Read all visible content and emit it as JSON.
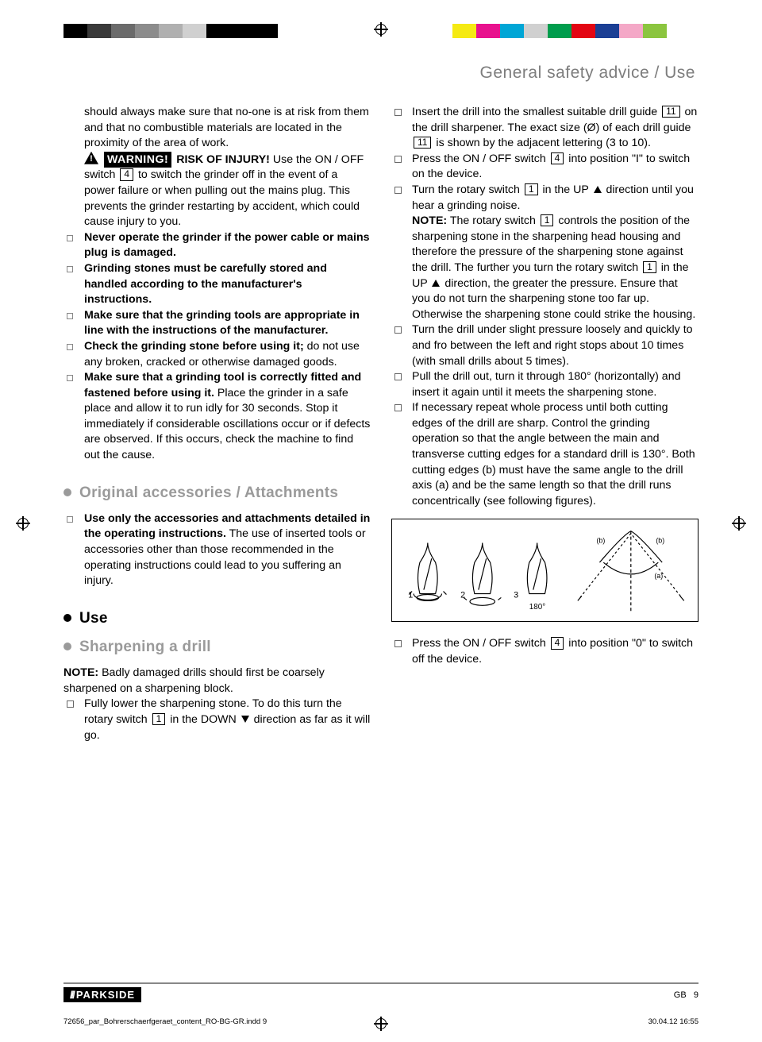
{
  "reg_colors_left": [
    "#000000",
    "#3a3a3a",
    "#6b6b6b",
    "#8c8c8c",
    "#b0b0b0",
    "#d0d0d0",
    "#000000",
    "#000000",
    "#000000",
    "#ffffff"
  ],
  "reg_colors_right": [
    "#f5ea13",
    "#e8128e",
    "#00a6d6",
    "#d0d0d0",
    "#009d4d",
    "#e30613",
    "#1b3f94",
    "#f4a8c7",
    "#8bc53f",
    "#ffffff"
  ],
  "header": "General safety advice / Use",
  "col1": {
    "p1_pre": "should always make sure that no-one is at risk from them and that no combustible materials are located in the proximity of the area of work.",
    "warn_label": "WARNING!",
    "warn_title": " RISK OF INJURY!",
    "warn_text1": " Use the ON / OFF switch ",
    "warn_box1": "4",
    "warn_text2": " to switch the grinder off in the event of a power failure or when pulling out the mains plug. This prevents the grinder restarting by accident, which could cause injury to you.",
    "li1": "Never operate the grinder if the power cable or mains plug is damaged.",
    "li2": "Grinding stones must be carefully stored and handled according to the manufacturer's instructions.",
    "li3": "Make sure that the grinding tools are appropriate in line with the instructions of the manufacturer.",
    "li4a": "Check the grinding stone before using it;",
    "li4b": " do not use any broken, cracked or otherwise damaged goods.",
    "li5a": "Make sure that a grinding tool is correctly fitted and fastened before using it.",
    "li5b": " Place the grinder in a safe place and allow it to run idly for 30 seconds. Stop it immediately if considerable oscillations occur or if defects are observed. If this occurs, check the machine to find out the cause.",
    "sec1_title": "Original accessories / Attachments",
    "acc_li_a": "Use only the accessories and attachments detailed in the operating instructions.",
    "acc_li_b": " The use of inserted tools or accessories other than those recommended in the operating instructions could lead to you suffering an injury.",
    "sec_use": "Use",
    "sec_sharpen": "Sharpening a drill",
    "note_label": "NOTE:",
    "note_text": " Badly damaged drills should first be coarsely sharpened on a sharpening block.",
    "sh_li1a": "Fully lower the sharpening stone. To do this turn the rotary switch ",
    "sh_box1": "1",
    "sh_li1b": " in the DOWN ",
    "sh_li1c": " direction as far as it will go."
  },
  "col2": {
    "r1a": "Insert the drill into the smallest suitable drill guide ",
    "r1_box1": "11",
    "r1b": " on the drill sharpener. The exact size (Ø) of each drill guide ",
    "r1_box2": "11",
    "r1c": " is shown by the adjacent lettering (3 to 10).",
    "r2a": "Press the ON / OFF switch ",
    "r2_box": "4",
    "r2b": " into position \"I\" to switch on the device.",
    "r3a": "Turn the rotary switch ",
    "r3_box": "1",
    "r3b": " in the UP ",
    "r3c": " direction until you hear a grinding noise.",
    "note2a": "NOTE:",
    "note2b": " The rotary switch ",
    "note2_box": "1",
    "note2c": " controls the position of the sharpening stone in the sharpening head housing and therefore the pressure of the sharpening stone against the drill. The further you turn the rotary switch ",
    "note2_box2": "1",
    "note2d": " in the UP ",
    "note2e": " direction, the greater the pressure. Ensure that you do not turn the sharpening stone too far up. Otherwise the sharpening stone could strike the housing.",
    "r4": "Turn the drill under slight pressure loosely and quickly to and fro between the left and right stops about 10 times (with small drills about 5 times).",
    "r5": "Pull the drill out, turn it through 180° (horizontally) and insert it again until it meets the sharpening stone.",
    "r6": "If necessary repeat whole process until both cutting edges of the drill are sharp. Control the grinding operation so that the angle between the main and transverse cutting edges for a standard drill is 130°. Both cutting edges (b) must have the same angle to the drill axis (a) and be the same length so that the drill runs concentrically (see following figures).",
    "r7a": "Press the ON / OFF switch ",
    "r7_box": "4",
    "r7b": " into position \"0\" to switch off the device.",
    "fig_labels": {
      "n1": "1",
      "n2": "2",
      "n3": "3",
      "deg": "180°",
      "b1": "(b)",
      "b2": "(b)",
      "a": "(a)"
    }
  },
  "footer": {
    "brand_slashes": "///",
    "brand": "PARKSIDE",
    "gb": "GB",
    "page": "9"
  },
  "meta": {
    "file": "72656_par_Bohrerschaerfgeraet_content_RO-BG-GR.indd   9",
    "date": "30.04.12   16:55"
  }
}
